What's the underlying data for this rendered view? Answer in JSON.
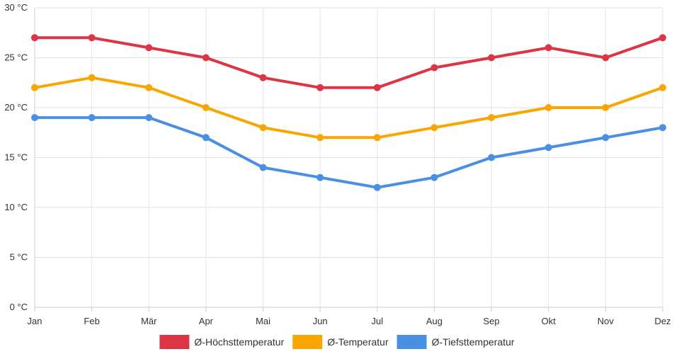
{
  "chart_data": {
    "type": "line",
    "categories": [
      "Jan",
      "Feb",
      "Mär",
      "Apr",
      "Mai",
      "Jun",
      "Jul",
      "Aug",
      "Sep",
      "Okt",
      "Nov",
      "Dez"
    ],
    "ylim": [
      0,
      30
    ],
    "yticks": [
      0,
      5,
      10,
      15,
      20,
      25,
      30
    ],
    "ytick_labels": [
      "0 °C",
      "5 °C",
      "10 °C",
      "15 °C",
      "20 °C",
      "25 °C",
      "30 °C"
    ],
    "grid": true,
    "legend_position": "bottom",
    "series": [
      {
        "name": "Ø-Höchsttemperatur",
        "color": "#dc3545",
        "values": [
          27,
          27,
          26,
          25,
          23,
          22,
          22,
          24,
          25,
          26,
          25,
          27
        ]
      },
      {
        "name": "Ø-Temperatur",
        "color": "#f9a602",
        "values": [
          22,
          23,
          22,
          20,
          18,
          17,
          17,
          18,
          19,
          20,
          20,
          22
        ]
      },
      {
        "name": "Ø-Tiefsttemperatur",
        "color": "#4a90e2",
        "values": [
          19,
          19,
          19,
          17,
          14,
          13,
          12,
          13,
          15,
          16,
          17,
          18
        ]
      }
    ]
  }
}
